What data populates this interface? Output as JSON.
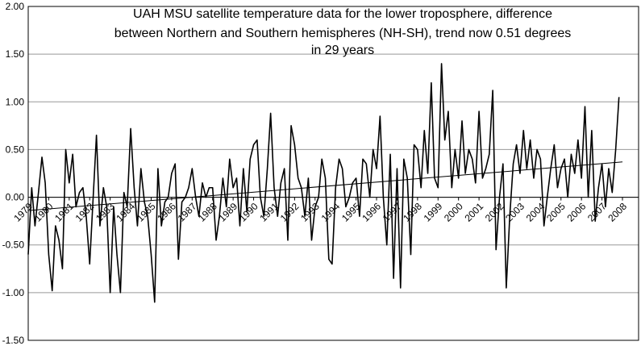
{
  "chart_data": {
    "type": "line",
    "title": [
      "UAH MSU satellite temperature data for the lower troposphere, difference",
      "between Northern and Southern hemispheres (NH-SH), trend now 0.51 degrees",
      "in 29 years"
    ],
    "color": "#000000",
    "grid": true,
    "xlim": [
      1979,
      2008
    ],
    "ylim": [
      -1.5,
      2.0
    ],
    "yticks": [
      {
        "value": 2.0,
        "label": "2.00"
      },
      {
        "value": 1.5,
        "label": "1.50"
      },
      {
        "value": 1.0,
        "label": "1.00"
      },
      {
        "value": 0.5,
        "label": "0.50"
      },
      {
        "value": 0,
        "label": "0.00"
      },
      {
        "value": -0.5,
        "label": "-0.50"
      },
      {
        "value": -1.0,
        "label": "-1.00"
      },
      {
        "value": -1.5,
        "label": "-1.50"
      }
    ],
    "xticks": [
      1979,
      1980,
      1981,
      1982,
      1983,
      1984,
      1985,
      1986,
      1987,
      1988,
      1989,
      1990,
      1991,
      1992,
      1993,
      1994,
      1995,
      1996,
      1997,
      1998,
      1999,
      2000,
      2001,
      2002,
      2003,
      2004,
      2005,
      2006,
      2007,
      2008
    ],
    "x": [
      1979.0,
      1979.17,
      1979.33,
      1979.5,
      1979.67,
      1979.83,
      1980.0,
      1980.17,
      1980.33,
      1980.5,
      1980.67,
      1980.83,
      1981.0,
      1981.17,
      1981.33,
      1981.5,
      1981.67,
      1981.83,
      1982.0,
      1982.17,
      1982.33,
      1982.5,
      1982.67,
      1982.83,
      1983.0,
      1983.17,
      1983.33,
      1983.5,
      1983.67,
      1983.83,
      1984.0,
      1984.17,
      1984.33,
      1984.5,
      1984.67,
      1984.83,
      1985.0,
      1985.17,
      1985.33,
      1985.5,
      1985.67,
      1985.83,
      1986.0,
      1986.17,
      1986.33,
      1986.5,
      1986.67,
      1986.83,
      1987.0,
      1987.17,
      1987.33,
      1987.5,
      1987.67,
      1987.83,
      1988.0,
      1988.17,
      1988.33,
      1988.5,
      1988.67,
      1988.83,
      1989.0,
      1989.17,
      1989.33,
      1989.5,
      1989.67,
      1989.83,
      1990.0,
      1990.17,
      1990.33,
      1990.5,
      1990.67,
      1990.83,
      1991.0,
      1991.17,
      1991.33,
      1991.5,
      1991.67,
      1991.83,
      1992.0,
      1992.17,
      1992.33,
      1992.5,
      1992.67,
      1992.83,
      1993.0,
      1993.17,
      1993.33,
      1993.5,
      1993.67,
      1993.83,
      1994.0,
      1994.17,
      1994.33,
      1994.5,
      1994.67,
      1994.83,
      1995.0,
      1995.17,
      1995.33,
      1995.5,
      1995.67,
      1995.83,
      1996.0,
      1996.17,
      1996.33,
      1996.5,
      1996.67,
      1996.83,
      1997.0,
      1997.17,
      1997.33,
      1997.5,
      1997.67,
      1997.83,
      1998.0,
      1998.17,
      1998.33,
      1998.5,
      1998.67,
      1998.83,
      1999.0,
      1999.17,
      1999.33,
      1999.5,
      1999.67,
      1999.83,
      2000.0,
      2000.17,
      2000.33,
      2000.5,
      2000.67,
      2000.83,
      2001.0,
      2001.17,
      2001.33,
      2001.5,
      2001.67,
      2001.83,
      2002.0,
      2002.17,
      2002.33,
      2002.5,
      2002.67,
      2002.83,
      2003.0,
      2003.17,
      2003.33,
      2003.5,
      2003.67,
      2003.83,
      2004.0,
      2004.17,
      2004.33,
      2004.5,
      2004.67,
      2004.83,
      2005.0,
      2005.17,
      2005.33,
      2005.5,
      2005.67,
      2005.83,
      2006.0,
      2006.17,
      2006.33,
      2006.5,
      2006.67,
      2006.83,
      2007.0,
      2007.17,
      2007.33,
      2007.5,
      2007.67,
      2007.83
    ],
    "values": [
      -0.6,
      0.1,
      -0.3,
      0.05,
      0.42,
      0.15,
      -0.6,
      -0.98,
      -0.3,
      -0.45,
      -0.75,
      0.5,
      0.15,
      0.45,
      -0.1,
      0.05,
      0.1,
      -0.2,
      -0.7,
      0.0,
      0.65,
      -0.3,
      0.1,
      -0.1,
      -1.0,
      -0.1,
      -0.6,
      -1.0,
      0.05,
      -0.1,
      0.72,
      0.1,
      -0.3,
      0.3,
      -0.05,
      -0.2,
      -0.6,
      -1.1,
      0.3,
      -0.3,
      -0.05,
      0.0,
      0.25,
      0.35,
      -0.65,
      -0.05,
      0.0,
      0.1,
      0.3,
      0.0,
      -0.2,
      0.15,
      0.0,
      0.1,
      0.1,
      -0.45,
      -0.2,
      0.2,
      -0.1,
      0.4,
      0.1,
      0.2,
      -0.3,
      0.3,
      -0.15,
      0.4,
      0.55,
      0.6,
      0.0,
      -0.2,
      0.3,
      0.88,
      0.1,
      -0.2,
      0.15,
      0.3,
      -0.45,
      0.75,
      0.55,
      0.2,
      0.1,
      -0.2,
      0.2,
      -0.45,
      -0.1,
      0.0,
      0.4,
      0.2,
      -0.65,
      -0.7,
      0.1,
      0.4,
      0.3,
      -0.1,
      0.0,
      0.15,
      0.2,
      -0.2,
      0.4,
      0.35,
      0.0,
      0.5,
      0.3,
      0.85,
      0.0,
      -0.5,
      0.45,
      -0.85,
      0.3,
      -0.95,
      0.4,
      0.2,
      -0.6,
      0.55,
      0.5,
      0.1,
      0.7,
      0.25,
      1.2,
      0.2,
      0.1,
      1.4,
      0.6,
      0.9,
      0.1,
      0.5,
      0.2,
      0.8,
      0.25,
      0.5,
      0.4,
      0.15,
      0.9,
      0.2,
      0.3,
      0.45,
      1.12,
      -0.55,
      0.0,
      0.35,
      -0.95,
      -0.2,
      0.35,
      0.55,
      0.25,
      0.7,
      0.3,
      0.6,
      0.2,
      0.5,
      0.4,
      -0.3,
      0.0,
      0.3,
      0.55,
      0.1,
      0.3,
      0.4,
      0.0,
      0.45,
      0.25,
      0.6,
      0.2,
      0.95,
      0.0,
      0.7,
      -0.25,
      0.1,
      0.35,
      -0.1,
      0.3,
      0.05,
      0.5,
      1.05
    ],
    "trend": {
      "x": [
        1979,
        2008
      ],
      "values": [
        -0.14,
        0.37
      ]
    }
  }
}
